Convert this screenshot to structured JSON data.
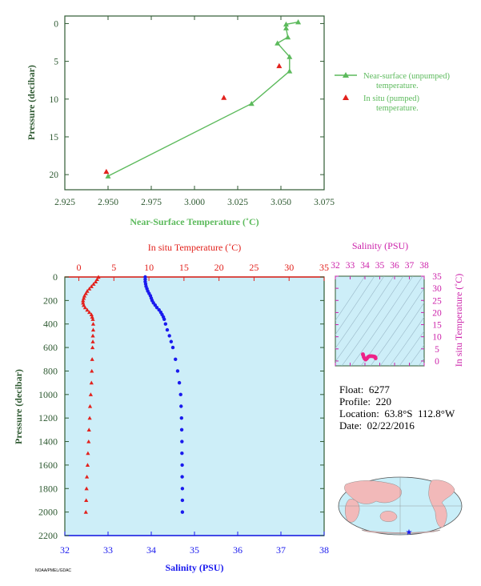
{
  "colors": {
    "green": "#5cba5c",
    "red": "#e2211c",
    "blue": "#1a1aee",
    "magenta": "#cc22aa",
    "axis_text": "#2f5a32",
    "profile_bg": "#cdeef8",
    "ocean": "#c9eef8",
    "land": "#f2b9b9"
  },
  "info": {
    "float": "Float:  6277",
    "profile": "Profile:  220",
    "location": "Location:  63.8°S  112.8°W",
    "date": "Date:  02/22/2016"
  },
  "tiny_label": "NOAA/PMEL/GDAC",
  "chart_data": [
    {
      "type": "scatter",
      "title": "",
      "xlabel": "Near-Surface Temperature (˚C)",
      "ylabel": "Pressure (decibar)",
      "xlim": [
        2.925,
        3.075
      ],
      "ylim": [
        22,
        -1
      ],
      "x_ticks": [
        "2.925",
        "2.950",
        "2.975",
        "3.000",
        "3.025",
        "3.050",
        "3.075"
      ],
      "y_ticks": [
        "0",
        "5",
        "10",
        "15",
        "20"
      ],
      "legend_position": "right",
      "series": [
        {
          "name": "Near-surface (unpumped) temperature.",
          "mark": "line-triangle",
          "points": [
            [
              3.06,
              -0.2
            ],
            [
              3.053,
              0.1
            ],
            [
              3.053,
              0.6
            ],
            [
              3.054,
              1.8
            ],
            [
              3.048,
              2.6
            ],
            [
              3.055,
              4.4
            ],
            [
              3.055,
              6.3
            ],
            [
              3.033,
              10.6
            ],
            [
              2.95,
              20.2
            ]
          ]
        },
        {
          "name": "In situ (pumped) temperature.",
          "mark": "triangle",
          "points": [
            [
              3.049,
              5.6
            ],
            [
              3.017,
              9.8
            ],
            [
              2.949,
              19.6
            ]
          ]
        }
      ]
    },
    {
      "type": "scatter",
      "title": "",
      "xlabel": "Salinity (PSU)",
      "xlabel_top": "In situ Temperature (˚C)",
      "ylabel": "Pressure (decibar)",
      "xlim_bottom": [
        32,
        38
      ],
      "xlim_top": [
        -2,
        35
      ],
      "ylim": [
        2200,
        0
      ],
      "x_ticks_bottom": [
        "32",
        "33",
        "34",
        "35",
        "36",
        "37",
        "38"
      ],
      "x_ticks_top": [
        "0",
        "5",
        "10",
        "15",
        "20",
        "25",
        "30",
        "35"
      ],
      "y_ticks": [
        "0",
        "200",
        "400",
        "600",
        "800",
        "1000",
        "1200",
        "1400",
        "1600",
        "1800",
        "2000",
        "2200"
      ],
      "series": [
        {
          "name": "In situ Temperature",
          "axis": "top",
          "points": [
            [
              2.8,
              0
            ],
            [
              2.6,
              20
            ],
            [
              2.4,
              40
            ],
            [
              2.1,
              60
            ],
            [
              1.8,
              80
            ],
            [
              1.5,
              100
            ],
            [
              1.2,
              120
            ],
            [
              1.0,
              140
            ],
            [
              0.8,
              160
            ],
            [
              0.7,
              180
            ],
            [
              0.6,
              200
            ],
            [
              0.6,
              220
            ],
            [
              0.7,
              240
            ],
            [
              0.9,
              260
            ],
            [
              1.2,
              280
            ],
            [
              1.5,
              300
            ],
            [
              1.8,
              320
            ],
            [
              1.9,
              340
            ],
            [
              2.0,
              360
            ],
            [
              2.05,
              400
            ],
            [
              2.05,
              450
            ],
            [
              2.0,
              500
            ],
            [
              2.0,
              550
            ],
            [
              1.95,
              600
            ],
            [
              1.9,
              700
            ],
            [
              1.85,
              800
            ],
            [
              1.8,
              900
            ],
            [
              1.7,
              1000
            ],
            [
              1.6,
              1100
            ],
            [
              1.55,
              1200
            ],
            [
              1.45,
              1300
            ],
            [
              1.4,
              1400
            ],
            [
              1.3,
              1500
            ],
            [
              1.25,
              1600
            ],
            [
              1.15,
              1700
            ],
            [
              1.1,
              1800
            ],
            [
              1.05,
              1900
            ],
            [
              1.0,
              2000
            ]
          ]
        },
        {
          "name": "Salinity",
          "axis": "bottom",
          "points": [
            [
              33.86,
              0
            ],
            [
              33.86,
              20
            ],
            [
              33.86,
              40
            ],
            [
              33.87,
              60
            ],
            [
              33.88,
              80
            ],
            [
              33.9,
              100
            ],
            [
              33.92,
              120
            ],
            [
              33.95,
              140
            ],
            [
              33.98,
              160
            ],
            [
              34.0,
              180
            ],
            [
              34.02,
              200
            ],
            [
              34.05,
              220
            ],
            [
              34.09,
              240
            ],
            [
              34.13,
              260
            ],
            [
              34.18,
              280
            ],
            [
              34.22,
              300
            ],
            [
              34.25,
              320
            ],
            [
              34.28,
              340
            ],
            [
              34.3,
              360
            ],
            [
              34.33,
              400
            ],
            [
              34.37,
              450
            ],
            [
              34.42,
              500
            ],
            [
              34.46,
              550
            ],
            [
              34.5,
              600
            ],
            [
              34.56,
              700
            ],
            [
              34.61,
              800
            ],
            [
              34.65,
              900
            ],
            [
              34.68,
              1000
            ],
            [
              34.69,
              1100
            ],
            [
              34.7,
              1200
            ],
            [
              34.705,
              1300
            ],
            [
              34.71,
              1400
            ],
            [
              34.71,
              1500
            ],
            [
              34.715,
              1600
            ],
            [
              34.715,
              1700
            ],
            [
              34.72,
              1800
            ],
            [
              34.72,
              1900
            ],
            [
              34.72,
              2000
            ]
          ]
        }
      ]
    },
    {
      "type": "scatter",
      "title": "",
      "xlabel_top": "Salinity (PSU)",
      "ylabel_right": "In situ Temperature (˚C)",
      "xlim": [
        32,
        38
      ],
      "ylim": [
        -2,
        35
      ],
      "x_ticks": [
        "32",
        "33",
        "34",
        "35",
        "36",
        "37",
        "38"
      ],
      "y_ticks": [
        "0",
        "5",
        "10",
        "15",
        "20",
        "25",
        "30",
        "35"
      ],
      "series": [
        {
          "name": "T-S",
          "points": [
            [
              33.86,
              2.8
            ],
            [
              33.88,
              2.4
            ],
            [
              33.92,
              1.6
            ],
            [
              33.98,
              0.9
            ],
            [
              34.05,
              0.6
            ],
            [
              34.13,
              1.0
            ],
            [
              34.2,
              1.6
            ],
            [
              34.28,
              1.9
            ],
            [
              34.37,
              2.0
            ],
            [
              34.46,
              2.0
            ],
            [
              34.56,
              1.9
            ],
            [
              34.65,
              1.8
            ],
            [
              34.7,
              1.55
            ],
            [
              34.72,
              1.1
            ]
          ]
        }
      ]
    }
  ]
}
